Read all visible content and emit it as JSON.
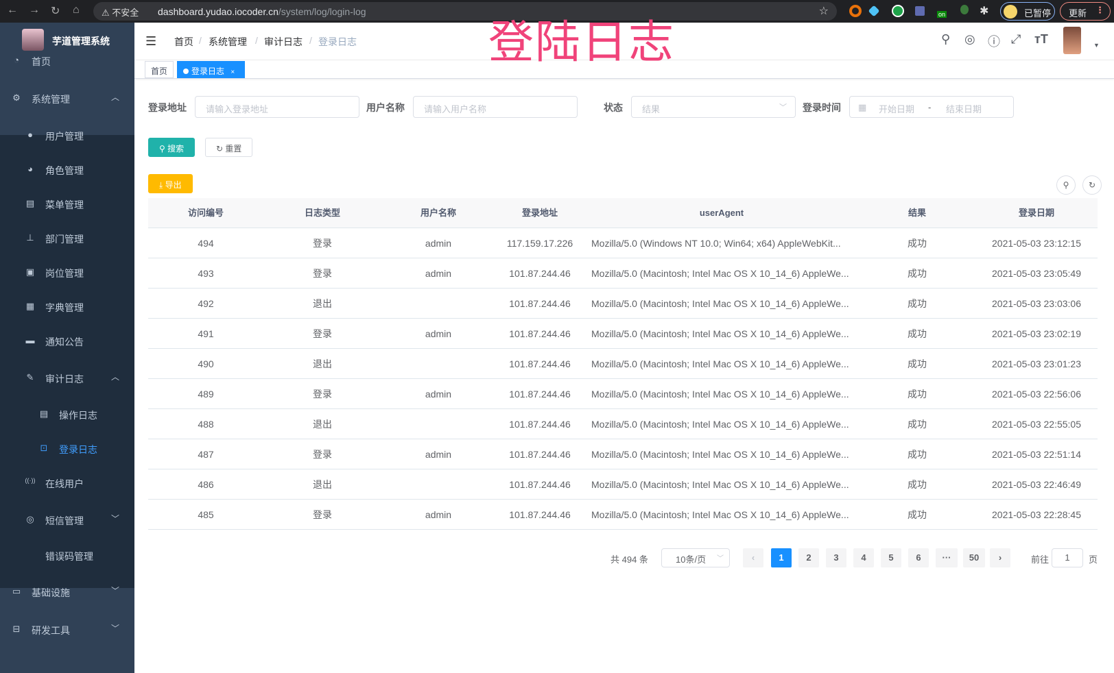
{
  "browser": {
    "security": "不安全",
    "url_host": "dashboard.yudao.iocoder.cn",
    "url_path": "/system/log/login-log",
    "paused": "已暂停",
    "update": "更新",
    "ext_badge": "on"
  },
  "overlay_title": "登陆日志",
  "sidebar": {
    "brand": "芋道管理系统",
    "items": [
      {
        "label": "首页",
        "icon": "dashboard-icon"
      },
      {
        "label": "系统管理",
        "icon": "gear-icon",
        "arrow": "︿"
      },
      {
        "label": "用户管理",
        "icon": "user-icon"
      },
      {
        "label": "角色管理",
        "icon": "peoples-icon"
      },
      {
        "label": "菜单管理",
        "icon": "tree-table-icon"
      },
      {
        "label": "部门管理",
        "icon": "tree-icon"
      },
      {
        "label": "岗位管理",
        "icon": "post-icon"
      },
      {
        "label": "字典管理",
        "icon": "dict-icon"
      },
      {
        "label": "通知公告",
        "icon": "message-icon"
      },
      {
        "label": "审计日志",
        "icon": "log-icon",
        "arrow": "︿"
      },
      {
        "label": "操作日志",
        "icon": "form-icon"
      },
      {
        "label": "登录日志",
        "icon": "logininfor-icon",
        "active": true
      },
      {
        "label": "在线用户",
        "icon": "online-icon"
      },
      {
        "label": "短信管理",
        "icon": "shield-icon",
        "arrow": "﹀"
      },
      {
        "label": "错误码管理",
        "icon": "code-icon"
      },
      {
        "label": "基础设施",
        "icon": "monitor-icon",
        "arrow": "﹀"
      },
      {
        "label": "研发工具",
        "icon": "tool-icon",
        "arrow": "﹀"
      }
    ]
  },
  "header": {
    "breadcrumb": [
      "首页",
      "系统管理",
      "审计日志",
      "登录日志"
    ]
  },
  "tags": [
    {
      "label": "首页"
    },
    {
      "label": "登录日志",
      "close": "×"
    }
  ],
  "filters": {
    "ip_label": "登录地址",
    "ip_placeholder": "请输入登录地址",
    "user_label": "用户名称",
    "user_placeholder": "请输入用户名称",
    "status_label": "状态",
    "status_placeholder": "结果",
    "time_label": "登录时间",
    "start_placeholder": "开始日期",
    "range_sep": "-",
    "end_placeholder": "结束日期",
    "search": "搜索",
    "reset": "重置",
    "export": "导出"
  },
  "table": {
    "columns": [
      "访问编号",
      "日志类型",
      "用户名称",
      "登录地址",
      "userAgent",
      "结果",
      "登录日期"
    ],
    "rows": [
      [
        "494",
        "登录",
        "admin",
        "117.159.17.226",
        "Mozilla/5.0 (Windows NT 10.0; Win64; x64) AppleWebKit...",
        "成功",
        "2021-05-03 23:12:15"
      ],
      [
        "493",
        "登录",
        "admin",
        "101.87.244.46",
        "Mozilla/5.0 (Macintosh; Intel Mac OS X 10_14_6) AppleWe...",
        "成功",
        "2021-05-03 23:05:49"
      ],
      [
        "492",
        "退出",
        "",
        "101.87.244.46",
        "Mozilla/5.0 (Macintosh; Intel Mac OS X 10_14_6) AppleWe...",
        "成功",
        "2021-05-03 23:03:06"
      ],
      [
        "491",
        "登录",
        "admin",
        "101.87.244.46",
        "Mozilla/5.0 (Macintosh; Intel Mac OS X 10_14_6) AppleWe...",
        "成功",
        "2021-05-03 23:02:19"
      ],
      [
        "490",
        "退出",
        "",
        "101.87.244.46",
        "Mozilla/5.0 (Macintosh; Intel Mac OS X 10_14_6) AppleWe...",
        "成功",
        "2021-05-03 23:01:23"
      ],
      [
        "489",
        "登录",
        "admin",
        "101.87.244.46",
        "Mozilla/5.0 (Macintosh; Intel Mac OS X 10_14_6) AppleWe...",
        "成功",
        "2021-05-03 22:56:06"
      ],
      [
        "488",
        "退出",
        "",
        "101.87.244.46",
        "Mozilla/5.0 (Macintosh; Intel Mac OS X 10_14_6) AppleWe...",
        "成功",
        "2021-05-03 22:55:05"
      ],
      [
        "487",
        "登录",
        "admin",
        "101.87.244.46",
        "Mozilla/5.0 (Macintosh; Intel Mac OS X 10_14_6) AppleWe...",
        "成功",
        "2021-05-03 22:51:14"
      ],
      [
        "486",
        "退出",
        "",
        "101.87.244.46",
        "Mozilla/5.0 (Macintosh; Intel Mac OS X 10_14_6) AppleWe...",
        "成功",
        "2021-05-03 22:46:49"
      ],
      [
        "485",
        "登录",
        "admin",
        "101.87.244.46",
        "Mozilla/5.0 (Macintosh; Intel Mac OS X 10_14_6) AppleWe...",
        "成功",
        "2021-05-03 22:28:45"
      ]
    ]
  },
  "pagination": {
    "total": "共 494 条",
    "page_size": "10条/页",
    "pages": [
      "1",
      "2",
      "3",
      "4",
      "5",
      "6",
      "···",
      "50"
    ],
    "current": "1",
    "goto_label": "前往",
    "goto_value": "1",
    "goto_suffix": "页"
  },
  "colors": {
    "sidebar": "#304156",
    "submenu": "#1f2d3d",
    "primary": "#1890ff",
    "search_btn": "#13ce66",
    "export_btn": "#ffba00",
    "overlay": "#f0437a"
  }
}
